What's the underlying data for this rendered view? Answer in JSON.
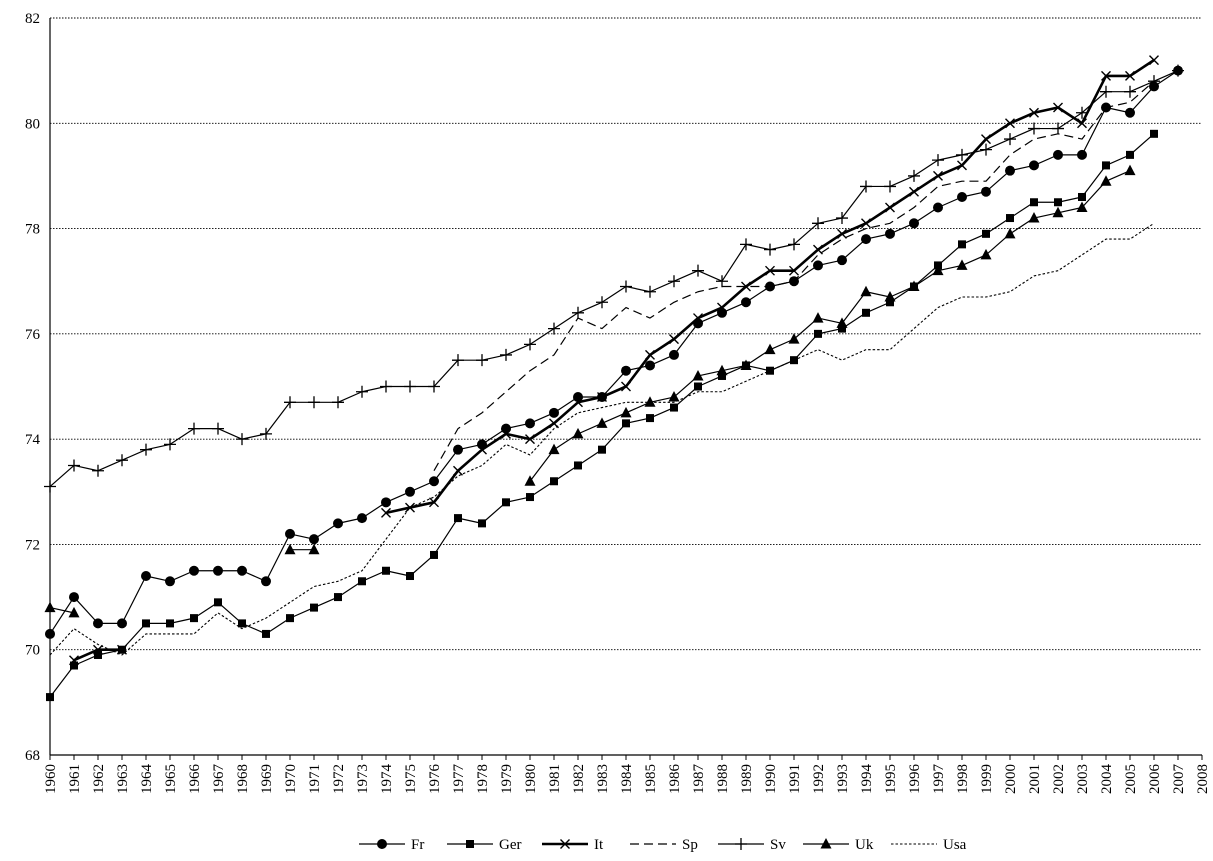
{
  "chart_data": {
    "type": "line",
    "title": "",
    "xlabel": "",
    "ylabel": "",
    "ylim": [
      68,
      82
    ],
    "yticks": [
      68,
      70,
      72,
      74,
      76,
      78,
      80,
      82
    ],
    "xlim": [
      1960,
      2008
    ],
    "categories": [
      "1960",
      "1961",
      "1962",
      "1963",
      "1964",
      "1965",
      "1966",
      "1967",
      "1968",
      "1969",
      "1970",
      "1971",
      "1972",
      "1973",
      "1974",
      "1975",
      "1976",
      "1977",
      "1978",
      "1979",
      "1980",
      "1981",
      "1982",
      "1983",
      "1984",
      "1985",
      "1986",
      "1987",
      "1988",
      "1989",
      "1990",
      "1991",
      "1992",
      "1993",
      "1994",
      "1995",
      "1996",
      "1997",
      "1998",
      "1999",
      "2000",
      "2001",
      "2002",
      "2003",
      "2004",
      "2005",
      "2006",
      "2007",
      "2008"
    ],
    "grid": "horizontal",
    "legend_position": "bottom",
    "series": [
      {
        "name": "Fr",
        "marker": "circle",
        "style": "solid-thin",
        "values": [
          70.3,
          71.0,
          70.5,
          70.5,
          71.4,
          71.3,
          71.5,
          71.5,
          71.5,
          71.3,
          72.2,
          72.1,
          72.4,
          72.5,
          72.8,
          73.0,
          73.2,
          73.8,
          73.9,
          74.2,
          74.3,
          74.5,
          74.8,
          74.8,
          75.3,
          75.4,
          75.6,
          76.2,
          76.4,
          76.6,
          76.9,
          77.0,
          77.3,
          77.4,
          77.8,
          77.9,
          78.1,
          78.4,
          78.6,
          78.7,
          79.1,
          79.2,
          79.4,
          79.4,
          80.3,
          80.2,
          80.7,
          81.0,
          null
        ]
      },
      {
        "name": "Ger",
        "marker": "square",
        "style": "solid-thin",
        "values": [
          69.1,
          69.7,
          69.9,
          70.0,
          70.5,
          70.5,
          70.6,
          70.9,
          70.5,
          70.3,
          70.6,
          70.8,
          71.0,
          71.3,
          71.5,
          71.4,
          71.8,
          72.5,
          72.4,
          72.8,
          72.9,
          73.2,
          73.5,
          73.8,
          74.3,
          74.4,
          74.6,
          75.0,
          75.2,
          75.4,
          75.3,
          75.5,
          76.0,
          76.1,
          76.4,
          76.6,
          76.9,
          77.3,
          77.7,
          77.9,
          78.2,
          78.5,
          78.5,
          78.6,
          79.2,
          79.4,
          79.8,
          null,
          null
        ]
      },
      {
        "name": "It",
        "marker": "x",
        "style": "solid-bold",
        "values": [
          null,
          69.8,
          70.0,
          70.0,
          null,
          null,
          null,
          null,
          null,
          null,
          null,
          null,
          null,
          null,
          72.6,
          72.7,
          72.8,
          73.4,
          73.8,
          74.1,
          74.0,
          74.3,
          74.7,
          74.8,
          75.0,
          75.6,
          75.9,
          76.3,
          76.5,
          76.9,
          77.2,
          77.2,
          77.6,
          77.9,
          78.1,
          78.4,
          78.7,
          79.0,
          79.2,
          79.7,
          80.0,
          80.2,
          80.3,
          80.0,
          80.9,
          80.9,
          81.2,
          null,
          null
        ]
      },
      {
        "name": "Sp",
        "marker": "none",
        "style": "dashed-long",
        "values": [
          null,
          null,
          null,
          null,
          null,
          null,
          null,
          null,
          null,
          null,
          null,
          null,
          null,
          null,
          null,
          null,
          73.4,
          74.2,
          74.5,
          74.9,
          75.3,
          75.6,
          76.3,
          76.1,
          76.5,
          76.3,
          76.6,
          76.8,
          76.9,
          76.9,
          76.9,
          77.0,
          77.5,
          77.8,
          78.0,
          78.1,
          78.4,
          78.8,
          78.9,
          78.9,
          79.4,
          79.7,
          79.8,
          79.7,
          80.3,
          80.4,
          80.8,
          null,
          null
        ]
      },
      {
        "name": "Sv",
        "marker": "plus",
        "style": "solid-thin",
        "values": [
          73.1,
          73.5,
          73.4,
          73.6,
          73.8,
          73.9,
          74.2,
          74.2,
          74.0,
          74.1,
          74.7,
          74.7,
          74.7,
          74.9,
          75.0,
          75.0,
          75.0,
          75.5,
          75.5,
          75.6,
          75.8,
          76.1,
          76.4,
          76.6,
          76.9,
          76.8,
          77.0,
          77.2,
          77.0,
          77.7,
          77.6,
          77.7,
          78.1,
          78.2,
          78.8,
          78.8,
          79.0,
          79.3,
          79.4,
          79.5,
          79.7,
          79.9,
          79.9,
          80.2,
          80.6,
          80.6,
          80.8,
          81.0,
          null
        ]
      },
      {
        "name": "Uk",
        "marker": "triangle",
        "style": "solid-thin",
        "values": [
          70.8,
          70.7,
          null,
          null,
          null,
          null,
          null,
          null,
          null,
          null,
          71.9,
          71.9,
          null,
          null,
          null,
          null,
          null,
          null,
          null,
          null,
          73.2,
          73.8,
          74.1,
          74.3,
          74.5,
          74.7,
          74.8,
          75.2,
          75.3,
          75.4,
          75.7,
          75.9,
          76.3,
          76.2,
          76.8,
          76.7,
          76.9,
          77.2,
          77.3,
          77.5,
          77.9,
          78.2,
          78.3,
          78.4,
          78.9,
          79.1,
          null,
          null,
          null
        ]
      },
      {
        "name": "Usa",
        "marker": "none",
        "style": "dotted",
        "values": [
          69.9,
          70.4,
          70.1,
          69.9,
          70.3,
          70.3,
          70.3,
          70.7,
          70.4,
          70.6,
          70.9,
          71.2,
          71.3,
          71.5,
          72.1,
          72.7,
          72.9,
          73.3,
          73.5,
          73.9,
          73.7,
          74.2,
          74.5,
          74.6,
          74.7,
          74.7,
          74.7,
          74.9,
          74.9,
          75.1,
          75.3,
          75.5,
          75.7,
          75.5,
          75.7,
          75.7,
          76.1,
          76.5,
          76.7,
          76.7,
          76.8,
          77.1,
          77.2,
          77.5,
          77.8,
          77.8,
          78.1,
          null,
          null
        ]
      }
    ]
  }
}
